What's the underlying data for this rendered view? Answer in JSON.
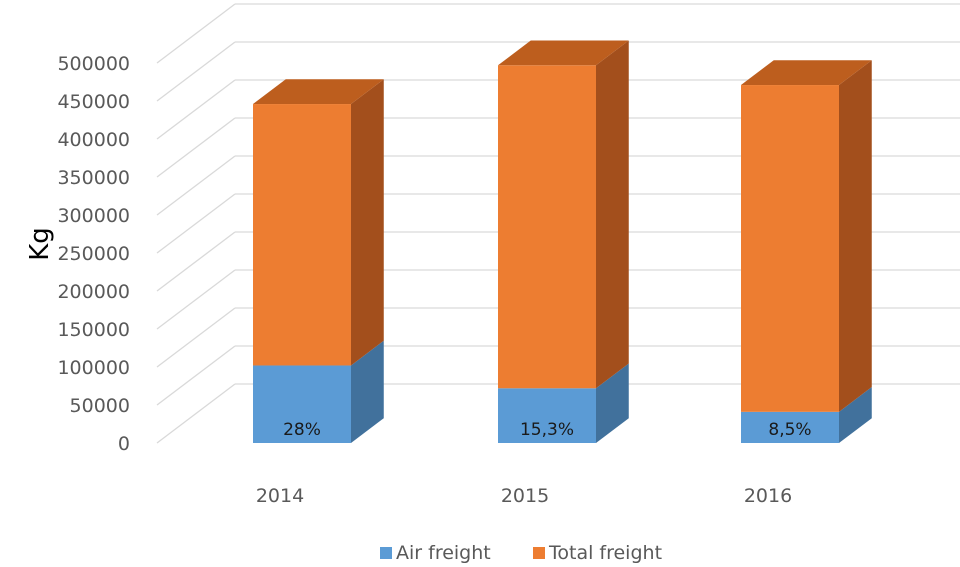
{
  "chart_data": {
    "type": "bar",
    "stacked": true,
    "three_d": true,
    "categories": [
      "2014",
      "2015",
      "2016"
    ],
    "series": [
      {
        "name": "Air freight",
        "values": [
          102000,
          72000,
          41000
        ],
        "labels": [
          "28%",
          "15,3%",
          "8,5%"
        ]
      },
      {
        "name": "Total freight",
        "values": [
          344000,
          425000,
          430000
        ]
      }
    ],
    "ylabel": "Kg",
    "xlabel": "",
    "ylim": [
      0,
      500000
    ],
    "yticks": [
      0,
      50000,
      100000,
      150000,
      200000,
      250000,
      300000,
      350000,
      400000,
      450000,
      500000
    ],
    "grid": true,
    "legend_position": "bottom",
    "colors": {
      "Air freight": {
        "front": "#5B9BD5",
        "side": "#41719C",
        "top": "#7FB2E0"
      },
      "Total freight": {
        "front": "#ED7D31",
        "side": "#A34F1C",
        "top": "#BD5E1E"
      },
      "grid": "#D9D9D9",
      "text": "#595959"
    }
  }
}
